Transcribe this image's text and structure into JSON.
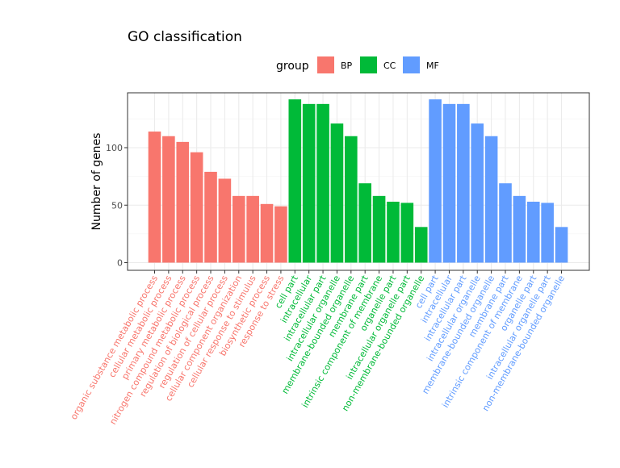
{
  "chart_data": {
    "type": "bar",
    "title": "GO classification",
    "xlabel": "",
    "ylabel": "Number of genes",
    "ylim": [
      0,
      145
    ],
    "yticks": [
      0,
      50,
      100
    ],
    "grid": true,
    "legend": {
      "title": "group",
      "position": "top"
    },
    "groups": [
      {
        "name": "BP",
        "color": "#F8766D"
      },
      {
        "name": "CC",
        "color": "#00BA38"
      },
      {
        "name": "MF",
        "color": "#619CFF"
      }
    ],
    "bars": [
      {
        "category": "organic substance metabolic process",
        "group": "BP",
        "value": 114
      },
      {
        "category": "cellular metabolic process",
        "group": "BP",
        "value": 110
      },
      {
        "category": "primary metabolic process",
        "group": "BP",
        "value": 105
      },
      {
        "category": "nitrogen compound metabolic process",
        "group": "BP",
        "value": 96
      },
      {
        "category": "regulation of biological process",
        "group": "BP",
        "value": 79
      },
      {
        "category": "regulation of cellular process",
        "group": "BP",
        "value": 73
      },
      {
        "category": "cellular component organization",
        "group": "BP",
        "value": 58
      },
      {
        "category": "cellular response to stimulus",
        "group": "BP",
        "value": 58
      },
      {
        "category": "biosynthetic process",
        "group": "BP",
        "value": 51
      },
      {
        "category": "response to stress",
        "group": "BP",
        "value": 49
      },
      {
        "category": "cell part",
        "group": "CC",
        "value": 142
      },
      {
        "category": "intracellular",
        "group": "CC",
        "value": 138
      },
      {
        "category": "intracellular part",
        "group": "CC",
        "value": 138
      },
      {
        "category": "intracellular organelle",
        "group": "CC",
        "value": 121
      },
      {
        "category": "membrane-bounded organelle",
        "group": "CC",
        "value": 110
      },
      {
        "category": "membrane part",
        "group": "CC",
        "value": 69
      },
      {
        "category": "intrinsic component of membrane",
        "group": "CC",
        "value": 58
      },
      {
        "category": "organelle part",
        "group": "CC",
        "value": 53
      },
      {
        "category": "intracellular organelle part",
        "group": "CC",
        "value": 52
      },
      {
        "category": "non-membrane-bounded organelle",
        "group": "CC",
        "value": 31
      },
      {
        "category": "cell part",
        "group": "MF",
        "value": 142
      },
      {
        "category": "intracellular",
        "group": "MF",
        "value": 138
      },
      {
        "category": "intracellular part",
        "group": "MF",
        "value": 138
      },
      {
        "category": "intracellular organelle",
        "group": "MF",
        "value": 121
      },
      {
        "category": "membrane-bounded organelle",
        "group": "MF",
        "value": 110
      },
      {
        "category": "membrane part",
        "group": "MF",
        "value": 69
      },
      {
        "category": "intrinsic component of membrane",
        "group": "MF",
        "value": 58
      },
      {
        "category": "organelle part",
        "group": "MF",
        "value": 53
      },
      {
        "category": "intracellular organelle part",
        "group": "MF",
        "value": 52
      },
      {
        "category": "non-membrane-bounded organelle",
        "group": "MF",
        "value": 31
      }
    ]
  }
}
